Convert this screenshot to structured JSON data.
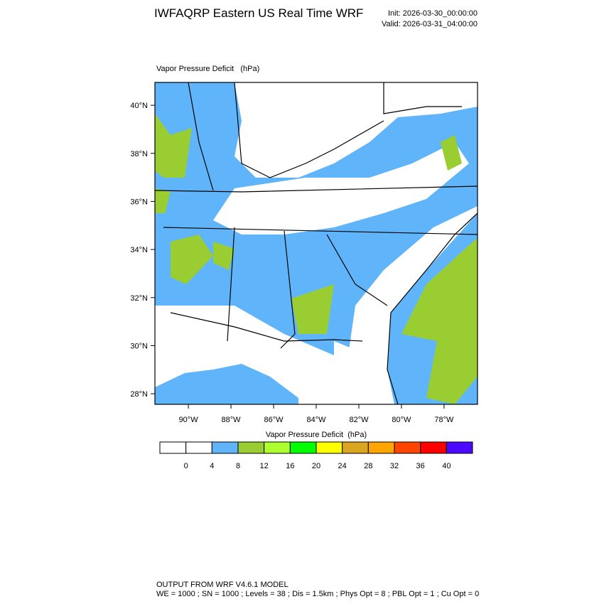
{
  "header": {
    "title": "IWFAQRP Eastern US Real Time WRF",
    "init": "Init: 2026-03-30_00:00:00",
    "valid": "Valid: 2026-03-31_04:00:00"
  },
  "map": {
    "label": "Vapor Pressure Deficit   (hPa)",
    "lon_range": [
      -91.57,
      -76.43
    ],
    "lat_range": [
      27.56,
      40.95
    ],
    "lon_ticks": [
      {
        "value": -90,
        "label": "90°W"
      },
      {
        "value": -88,
        "label": "88°W"
      },
      {
        "value": -86,
        "label": "86°W"
      },
      {
        "value": -84,
        "label": "84°W"
      },
      {
        "value": -82,
        "label": "82°W"
      },
      {
        "value": -80,
        "label": "80°W"
      },
      {
        "value": -78,
        "label": "78°W"
      }
    ],
    "lat_ticks": [
      {
        "value": 40,
        "label": "40°N"
      },
      {
        "value": 38,
        "label": "38°N"
      },
      {
        "value": 36,
        "label": "36°N"
      },
      {
        "value": 34,
        "label": "34°N"
      },
      {
        "value": 32,
        "label": "32°N"
      },
      {
        "value": 30,
        "label": "30°N"
      },
      {
        "value": 28,
        "label": "28°N"
      }
    ]
  },
  "colorbar": {
    "title": "Vapor Pressure Deficit  (hPa)",
    "colors": [
      "#ffffff",
      "#ffffff",
      "#5fb4fa",
      "#9acd32",
      "#adff2f",
      "#00ff00",
      "#ffff00",
      "#daa520",
      "#ffa500",
      "#ff4500",
      "#ff0000",
      "#4b0aff"
    ],
    "levels": [
      0,
      4,
      8,
      12,
      16,
      20,
      24,
      28,
      32,
      36,
      40
    ]
  },
  "footer": {
    "line1": "OUTPUT FROM WRF V4.6.1 MODEL",
    "line2": "WE = 1000 ; SN = 1000 ; Levels = 38 ; Dis = 1.5km ; Phys Opt = 8 ; PBL Opt = 1 ; Cu Opt = 0"
  }
}
